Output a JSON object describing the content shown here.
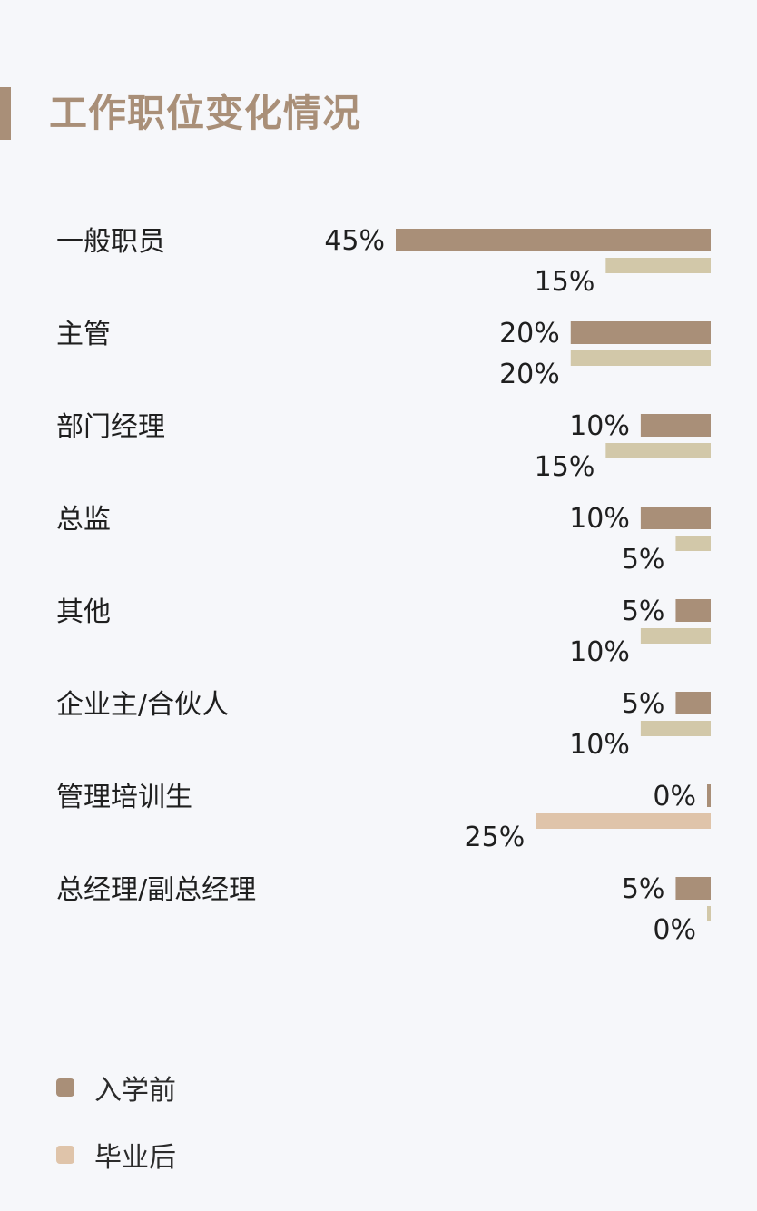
{
  "header": {
    "title": "工作职位变化情况"
  },
  "colors": {
    "accent": "#a98f78",
    "before": "#a98f78",
    "after": "#d2c8a9",
    "after_highlight": "#dfc4aa"
  },
  "legend": [
    {
      "label": "入学前",
      "color": "#a98f78"
    },
    {
      "label": "毕业后",
      "color": "#dfc4aa"
    }
  ],
  "chart_data": {
    "type": "bar",
    "orientation": "horizontal",
    "categories": [
      "一般职员",
      "主管",
      "部门经理",
      "总监",
      "其他",
      "企业主/合伙人",
      "管理培训生",
      "总经理/副总经理"
    ],
    "series": [
      {
        "name": "入学前",
        "values": [
          45,
          20,
          10,
          10,
          5,
          5,
          0,
          5
        ]
      },
      {
        "name": "毕业后",
        "values": [
          15,
          20,
          15,
          5,
          10,
          10,
          25,
          0
        ]
      }
    ],
    "value_labels": [
      [
        "45%",
        "20%",
        "10%",
        "10%",
        "5%",
        "5%",
        "0%",
        "5%"
      ],
      [
        "15%",
        "20%",
        "15%",
        "5%",
        "10%",
        "10%",
        "25%",
        "0%"
      ]
    ],
    "xlim": [
      0,
      45
    ],
    "grid": false,
    "legend_position": "bottom-left"
  }
}
